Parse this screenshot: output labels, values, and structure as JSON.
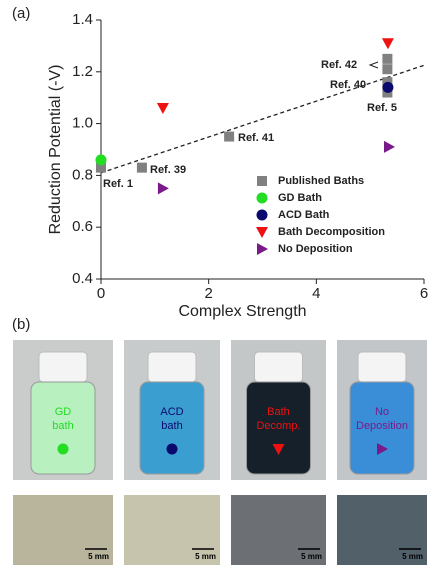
{
  "panel_labels": [
    "(a)",
    "(b)"
  ],
  "chart_data": {
    "type": "scatter",
    "x_label": "Complex Strength",
    "y_label": "Reduction Potential (-V)",
    "xlim": [
      0,
      6
    ],
    "xticks": [
      0,
      2,
      4,
      6
    ],
    "ylim": [
      0.4,
      1.4
    ],
    "yticks": [
      0.4,
      0.6,
      0.8,
      {
        "value": 1,
        "label": "1.0"
      },
      1.2,
      1.4
    ],
    "series": [
      {
        "name": "Published Baths",
        "color": "#808080",
        "marker": "square",
        "x": [
          0,
          0.76,
          2.38,
          5.32,
          5.32,
          5.32,
          5.32
        ],
        "y": [
          0.83,
          0.83,
          0.95,
          1.25,
          1.21,
          1.16,
          1.12
        ]
      },
      {
        "name": "GD Bath",
        "color": "#22dd22",
        "marker": "circle",
        "x": [
          0
        ],
        "y": [
          0.86
        ]
      },
      {
        "name": "ACD Bath",
        "color": "#0a0a6e",
        "marker": "circle",
        "x": [
          5.33
        ],
        "y": [
          1.14
        ]
      },
      {
        "name": "Bath Decomposition",
        "color": "#ee1111",
        "marker": "triangle_down",
        "x": [
          1.15,
          5.33
        ],
        "y": [
          1.06,
          1.31
        ]
      },
      {
        "name": "No Deposition",
        "color": "#7a1a8a",
        "marker": "triangle_right",
        "x": [
          1.15,
          5.35
        ],
        "y": [
          0.75,
          0.91
        ]
      }
    ],
    "trendline": {
      "x": [
        0,
        6
      ],
      "y": [
        0.81,
        1.225
      ]
    },
    "annotations": [
      "Ref. 1",
      "Ref. 39",
      "Ref. 41",
      "Ref. 42",
      "Ref. 40",
      "Ref. 5"
    ]
  },
  "photos": [
    {
      "label_lines": [
        "GD",
        "bath"
      ]
    },
    {
      "label_lines": [
        "ACD",
        "bath"
      ]
    },
    {
      "label_lines": [
        "Bath",
        "Decomp."
      ]
    },
    {
      "label_lines": [
        "No",
        "Deposition"
      ]
    }
  ],
  "scale_bar_labels": [
    "5 mm",
    "5 mm",
    "5 mm",
    "5 mm"
  ]
}
